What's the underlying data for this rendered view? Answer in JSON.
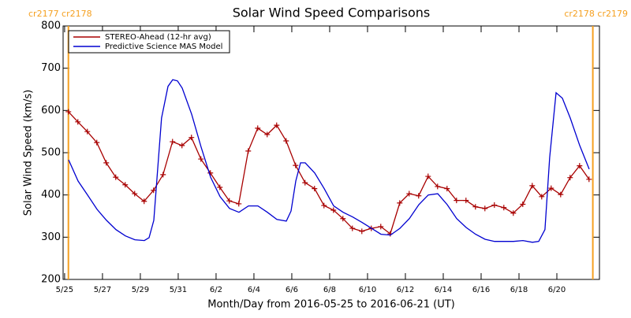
{
  "chart_data": {
    "type": "line",
    "title": "Solar Wind Speed Comparisons",
    "xlabel": "Month/Day from 2016-05-25 to 2016-06-21 (UT)",
    "ylabel": "Solar Wind Speed (km/s)",
    "xlim": [
      -0.08,
      28.25
    ],
    "ylim": [
      200,
      800
    ],
    "yticks": [
      200,
      300,
      400,
      500,
      600,
      700,
      800
    ],
    "xticks": [
      {
        "value": 0,
        "label": "5/25"
      },
      {
        "value": 2,
        "label": "5/27"
      },
      {
        "value": 4,
        "label": "5/29"
      },
      {
        "value": 6,
        "label": "5/31"
      },
      {
        "value": 8,
        "label": "6/2"
      },
      {
        "value": 10,
        "label": "6/4"
      },
      {
        "value": 12,
        "label": "6/6"
      },
      {
        "value": 14,
        "label": "6/8"
      },
      {
        "value": 16,
        "label": "6/10"
      },
      {
        "value": 18,
        "label": "6/12"
      },
      {
        "value": 20,
        "label": "6/14"
      },
      {
        "value": 22,
        "label": "6/16"
      },
      {
        "value": 24,
        "label": "6/18"
      },
      {
        "value": 26,
        "label": "6/20"
      }
    ],
    "legend": "upper left",
    "vlines": [
      {
        "x": 0.2,
        "label": "cr2177 cr2178",
        "color": "#f5a020"
      },
      {
        "x": 27.9,
        "label": "cr2178 cr2179",
        "color": "#f5a020"
      }
    ],
    "series": [
      {
        "name": "STEREO-Ahead (12-hr avg)",
        "color": "#a80000",
        "marker": "+",
        "x": [
          0.2,
          0.7,
          1.2,
          1.7,
          2.2,
          2.7,
          3.2,
          3.7,
          4.2,
          4.7,
          5.2,
          5.7,
          6.2,
          6.7,
          7.2,
          7.7,
          8.2,
          8.7,
          9.2,
          9.7,
          10.2,
          10.7,
          11.2,
          11.7,
          12.2,
          12.7,
          13.2,
          13.7,
          14.2,
          14.7,
          15.2,
          15.7,
          16.2,
          16.7,
          17.2,
          17.7,
          18.2,
          18.7,
          19.2,
          19.7,
          20.2,
          20.7,
          21.2,
          21.7,
          22.2,
          22.7,
          23.2,
          23.7,
          24.2,
          24.7,
          25.2,
          25.7,
          26.2,
          26.7,
          27.2,
          27.7
        ],
        "values": [
          597,
          573,
          550,
          524,
          476,
          442,
          424,
          403,
          385,
          411,
          448,
          526,
          517,
          536,
          485,
          452,
          418,
          386,
          379,
          504,
          558,
          543,
          565,
          528,
          470,
          429,
          415,
          375,
          364,
          344,
          321,
          314,
          321,
          325,
          308,
          381,
          403,
          398,
          444,
          420,
          415,
          387,
          387,
          372,
          368,
          376,
          370,
          357,
          378,
          422,
          396,
          416,
          401,
          441,
          469,
          437
        ]
      },
      {
        "name": "Predictive Science MAS Model",
        "color": "#0000d0",
        "x": [
          0.21,
          0.71,
          1.21,
          1.71,
          2.21,
          2.71,
          3.21,
          3.71,
          4.21,
          4.46,
          4.71,
          5.12,
          5.46,
          5.71,
          5.96,
          6.21,
          6.71,
          7.21,
          7.71,
          8.21,
          8.71,
          9.21,
          9.71,
          10.21,
          10.71,
          11.21,
          11.71,
          11.96,
          12.21,
          12.46,
          12.71,
          13.21,
          13.71,
          14.21,
          14.71,
          15.21,
          15.71,
          16.21,
          16.71,
          17.21,
          17.71,
          18.21,
          18.71,
          19.21,
          19.71,
          20.21,
          20.71,
          21.21,
          21.71,
          22.21,
          22.71,
          23.21,
          23.71,
          24.21,
          24.71,
          25.04,
          25.37,
          25.62,
          25.96,
          26.29,
          26.71,
          27.21,
          27.71
        ],
        "values": [
          483,
          433,
          400,
          366,
          340,
          318,
          303,
          294,
          292,
          299,
          340,
          582,
          657,
          673,
          670,
          653,
          591,
          513,
          442,
          396,
          368,
          359,
          374,
          374,
          359,
          342,
          338,
          362,
          433,
          476,
          476,
          452,
          415,
          374,
          359,
          348,
          335,
          321,
          307,
          305,
          321,
          344,
          377,
          400,
          403,
          377,
          344,
          323,
          307,
          295,
          290,
          290,
          290,
          292,
          288,
          290,
          318,
          489,
          642,
          629,
          582,
          517,
          461
        ]
      }
    ]
  }
}
